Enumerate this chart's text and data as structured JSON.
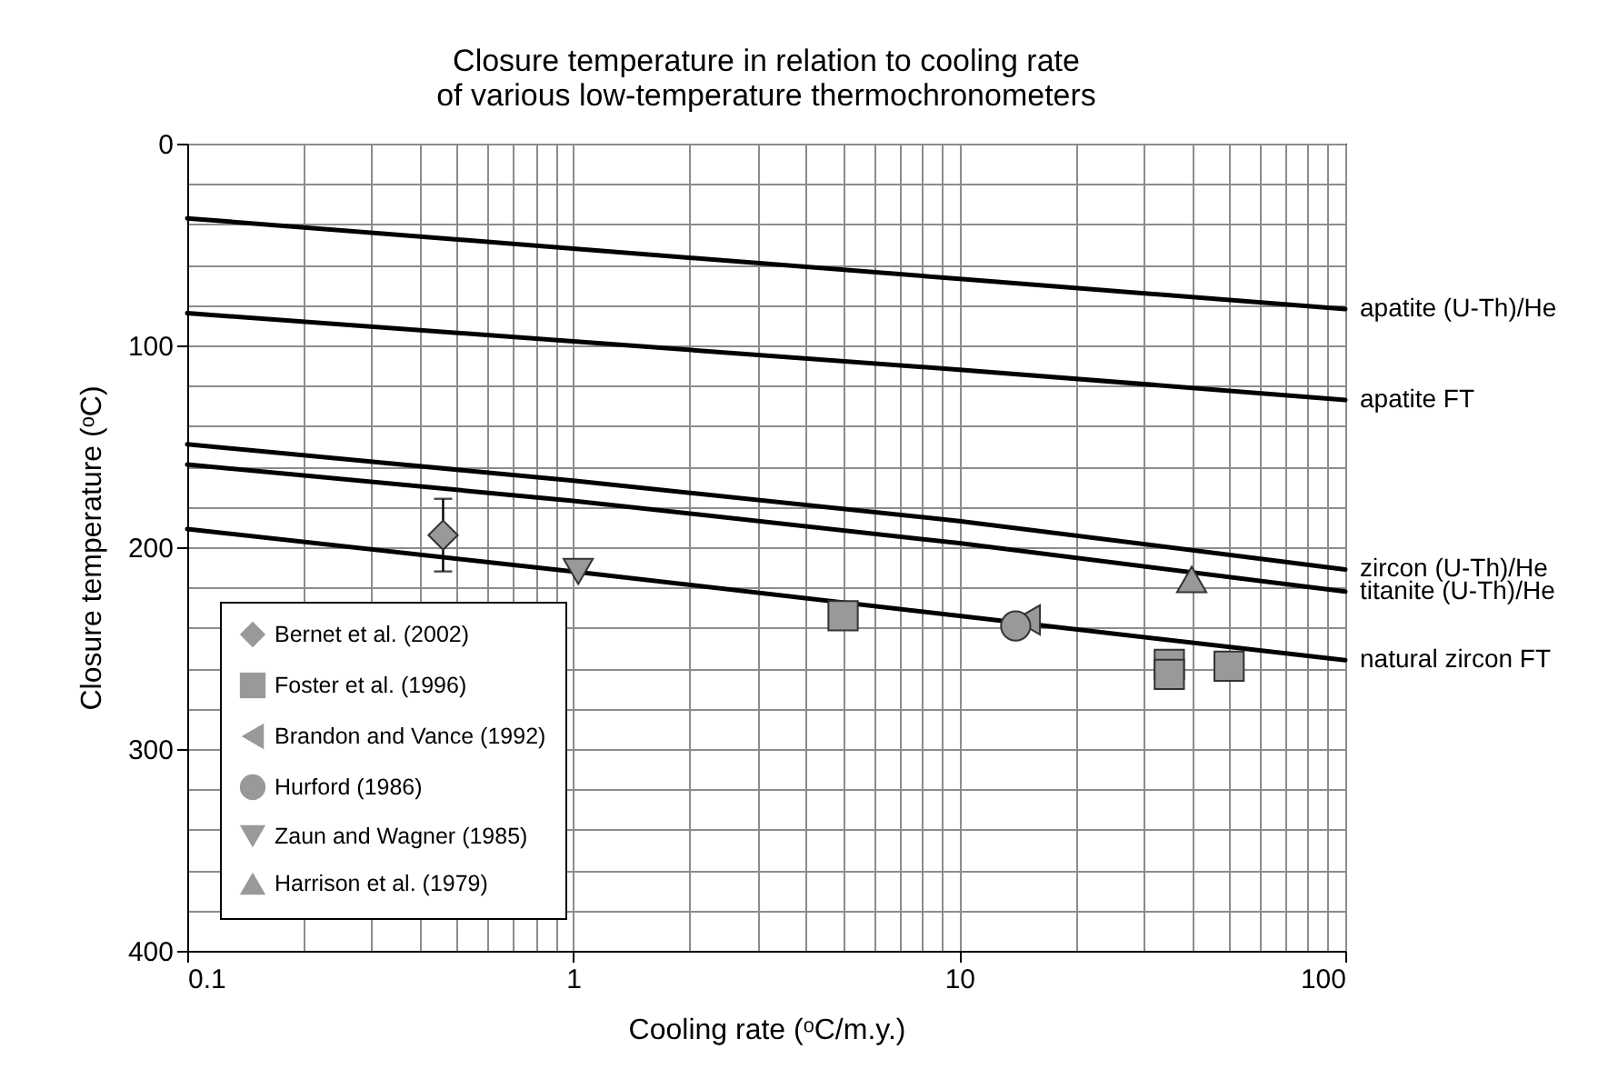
{
  "chart_data": {
    "type": "line",
    "title": "Closure temperature in relation to cooling rate\nof various low-temperature thermochronometers",
    "xlabel": "Cooling rate (ᵒC/m.y.)",
    "ylabel": "Closure temperature (ᵒC)",
    "log": "x",
    "grid": true,
    "legend": "bottom left",
    "xlim": [
      0.1,
      100
    ],
    "ylim": [
      400,
      0
    ],
    "xticks": [
      0.1,
      {
        "value": 0.2,
        "label": null
      },
      {
        "value": 0.3,
        "label": null
      },
      {
        "value": 0.4,
        "label": null
      },
      {
        "value": 0.5,
        "label": null
      },
      {
        "value": 0.6,
        "label": null
      },
      {
        "value": 0.7,
        "label": null
      },
      {
        "value": 0.8,
        "label": null
      },
      {
        "value": 0.9,
        "label": null
      },
      1,
      {
        "value": 2,
        "label": null
      },
      {
        "value": 3,
        "label": null
      },
      {
        "value": 4,
        "label": null
      },
      {
        "value": 5,
        "label": null
      },
      {
        "value": 6,
        "label": null
      },
      {
        "value": 7,
        "label": null
      },
      {
        "value": 8,
        "label": null
      },
      {
        "value": 9,
        "label": null
      },
      10,
      {
        "value": 20,
        "label": null
      },
      {
        "value": 30,
        "label": null
      },
      {
        "value": 40,
        "label": null
      },
      {
        "value": 50,
        "label": null
      },
      {
        "value": 60,
        "label": null
      },
      {
        "value": 70,
        "label": null
      },
      {
        "value": 80,
        "label": null
      },
      {
        "value": 90,
        "label": null
      },
      100
    ],
    "yticks": [
      0,
      {
        "value": 20,
        "label": null
      },
      {
        "value": 40,
        "label": null
      },
      {
        "value": 60,
        "label": null
      },
      {
        "value": 80,
        "label": null
      },
      100,
      {
        "value": 120,
        "label": null
      },
      {
        "value": 140,
        "label": null
      },
      {
        "value": 160,
        "label": null
      },
      {
        "value": 180,
        "label": null
      },
      200,
      {
        "value": 220,
        "label": null
      },
      {
        "value": 240,
        "label": null
      },
      {
        "value": 260,
        "label": null
      },
      {
        "value": 280,
        "label": null
      },
      300,
      {
        "value": 320,
        "label": null
      },
      {
        "value": 340,
        "label": null
      },
      {
        "value": 360,
        "label": null
      },
      {
        "value": 380,
        "label": null
      },
      400
    ],
    "series": [
      {
        "name": "apatite (U-Th)/He",
        "type": "line",
        "color": "#000000",
        "x": [
          0.1,
          1,
          10,
          100
        ],
        "values": [
          37,
          52,
          67,
          82
        ]
      },
      {
        "name": "apatite FT",
        "type": "line",
        "color": "#000000",
        "x": [
          0.1,
          1,
          10,
          100
        ],
        "values": [
          84,
          98,
          112,
          127
        ]
      },
      {
        "name": "zircon (U-Th)/He",
        "type": "line",
        "color": "#000000",
        "x": [
          0.1,
          1,
          10,
          100
        ],
        "values": [
          149,
          167,
          187,
          211
        ]
      },
      {
        "name": "titanite (U-Th)/He",
        "type": "line",
        "color": "#000000",
        "x": [
          0.1,
          1,
          10,
          100
        ],
        "values": [
          159,
          177,
          198,
          222
        ]
      },
      {
        "name": "natural zircon FT",
        "type": "line",
        "color": "#000000",
        "x": [
          0.1,
          1,
          10,
          100
        ],
        "values": [
          191,
          212,
          234,
          256
        ]
      },
      {
        "name": "Bernet et al. (2002)",
        "type": "scatter",
        "marker": "diamond",
        "color": "#999999",
        "x": [
          0.46
        ],
        "values": [
          194
        ],
        "errors": [
          18
        ]
      },
      {
        "name": "Foster et al. (1996)",
        "type": "scatter",
        "marker": "square",
        "color": "#999999",
        "x": [
          5,
          35,
          35,
          50
        ],
        "values": [
          234,
          258,
          263,
          259
        ]
      },
      {
        "name": "Brandon and Vance (1992)",
        "type": "scatter",
        "marker": "triangle-left",
        "color": "#999999",
        "x": [
          15
        ],
        "values": [
          236
        ]
      },
      {
        "name": "Hurford (1986)",
        "type": "scatter",
        "marker": "circle",
        "color": "#999999",
        "x": [
          14
        ],
        "values": [
          239
        ]
      },
      {
        "name": "Zaun and Wagner (1985)",
        "type": "scatter",
        "marker": "triangle-down",
        "color": "#999999",
        "x": [
          1.03
        ],
        "values": [
          212
        ]
      },
      {
        "name": "Harrison et al. (1979)",
        "type": "scatter",
        "marker": "triangle-up",
        "color": "#999999",
        "x": [
          40
        ],
        "values": [
          216
        ]
      }
    ]
  }
}
